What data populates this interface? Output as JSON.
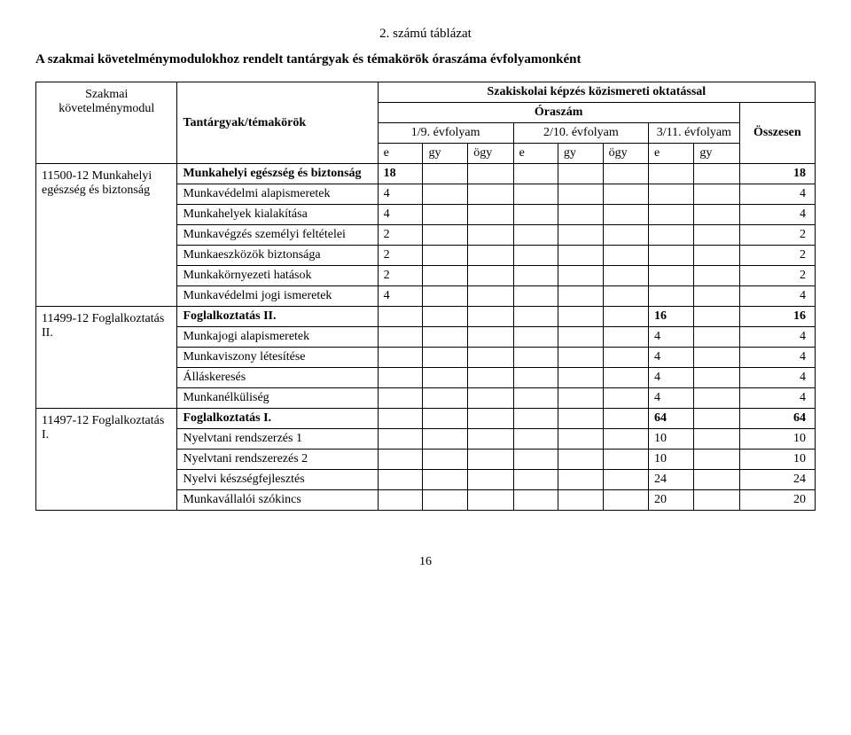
{
  "title": "2. számú táblázat",
  "subtitle": "A szakmai követelménymodulokhoz rendelt tantárgyak és témakörök óraszáma évfolyamonként",
  "header": {
    "left": "Szakmai követelménymodul",
    "subj": "Tantárgyak/témakörök",
    "group_top": "Szakiskolai képzés közismereti oktatással",
    "oraszam": "Óraszám",
    "year1": "1/9. évfolyam",
    "year2": "2/10. évfolyam",
    "year3": "3/11. évfolyam",
    "sum": "Összesen",
    "e": "e",
    "gy": "gy",
    "ogy": "ögy"
  },
  "modules": [
    {
      "code": "11500-12 Munkahelyi egészség és biztonság",
      "rows": [
        {
          "name": "Munkahelyi egészség és biztonság",
          "bold": true,
          "v": [
            "18",
            "",
            "",
            "",
            "",
            "",
            "",
            "",
            "18"
          ]
        },
        {
          "name": "Munkavédelmi alapismeretek",
          "v": [
            "4",
            "",
            "",
            "",
            "",
            "",
            "",
            "",
            "4"
          ]
        },
        {
          "name": "Munkahelyek kialakítása",
          "v": [
            "4",
            "",
            "",
            "",
            "",
            "",
            "",
            "",
            "4"
          ]
        },
        {
          "name": "Munkavégzés személyi feltételei",
          "v": [
            "2",
            "",
            "",
            "",
            "",
            "",
            "",
            "",
            "2"
          ]
        },
        {
          "name": "Munkaeszközök biztonsága",
          "v": [
            "2",
            "",
            "",
            "",
            "",
            "",
            "",
            "",
            "2"
          ]
        },
        {
          "name": "Munkakörnyezeti hatások",
          "v": [
            "2",
            "",
            "",
            "",
            "",
            "",
            "",
            "",
            "2"
          ]
        },
        {
          "name": "Munkavédelmi jogi ismeretek",
          "v": [
            "4",
            "",
            "",
            "",
            "",
            "",
            "",
            "",
            "4"
          ]
        }
      ]
    },
    {
      "code": "11499-12 Foglalkoztatás II.",
      "rows": [
        {
          "name": "Foglalkoztatás II.",
          "bold": true,
          "v": [
            "",
            "",
            "",
            "",
            "",
            "",
            "16",
            "",
            "16"
          ]
        },
        {
          "name": "Munkajogi alapismeretek",
          "v": [
            "",
            "",
            "",
            "",
            "",
            "",
            "4",
            "",
            "4"
          ]
        },
        {
          "name": "Munkaviszony létesítése",
          "v": [
            "",
            "",
            "",
            "",
            "",
            "",
            "4",
            "",
            "4"
          ]
        },
        {
          "name": "Álláskeresés",
          "v": [
            "",
            "",
            "",
            "",
            "",
            "",
            "4",
            "",
            "4"
          ]
        },
        {
          "name": "Munkanélküliség",
          "v": [
            "",
            "",
            "",
            "",
            "",
            "",
            "4",
            "",
            "4"
          ]
        }
      ]
    },
    {
      "code": "11497-12 Foglalkoztatás I.",
      "rows": [
        {
          "name": "Foglalkoztatás I.",
          "bold": true,
          "v": [
            "",
            "",
            "",
            "",
            "",
            "",
            "64",
            "",
            "64"
          ]
        },
        {
          "name": "Nyelvtani rendszerzés 1",
          "v": [
            "",
            "",
            "",
            "",
            "",
            "",
            "10",
            "",
            "10"
          ]
        },
        {
          "name": "Nyelvtani rendszerezés 2",
          "v": [
            "",
            "",
            "",
            "",
            "",
            "",
            "10",
            "",
            "10"
          ]
        },
        {
          "name": "Nyelvi készségfejlesztés",
          "v": [
            "",
            "",
            "",
            "",
            "",
            "",
            "24",
            "",
            "24"
          ]
        },
        {
          "name": "Munkavállalói szókincs",
          "v": [
            "",
            "",
            "",
            "",
            "",
            "",
            "20",
            "",
            "20"
          ]
        }
      ]
    }
  ],
  "pagenum": "16"
}
